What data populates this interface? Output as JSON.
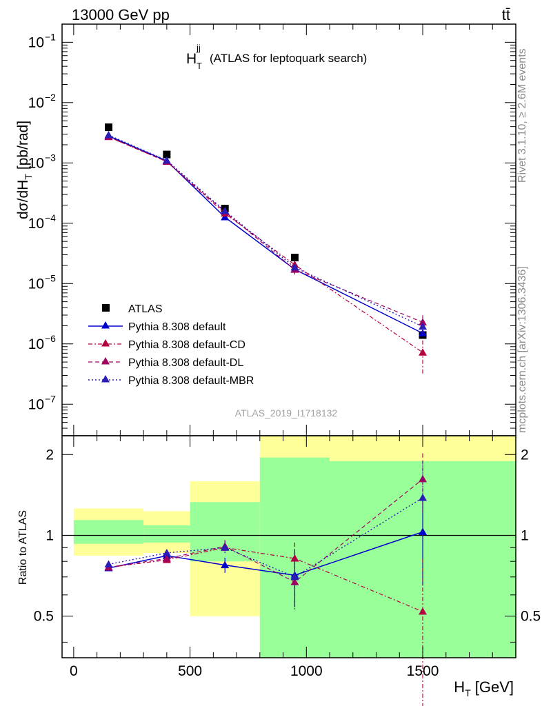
{
  "header": {
    "energy_label": "13000 GeV pp",
    "process_label": "tt̄"
  },
  "side": {
    "rivet_label": "Rivet 3.1.10, ≥ 2.6M events",
    "mcplots_label": "mcplots.cern.ch [arXiv:1306.3436]"
  },
  "chart_data": [
    {
      "type": "scatter",
      "panel": "main",
      "title": "H_T^jj (ATLAS for leptoquark search)",
      "title_main": "H",
      "title_sub": "T",
      "title_sup": "jj",
      "title_rest": "(ATLAS for leptoquark search)",
      "ylabel": "dσ/dH_T [pb/rad]",
      "ylabel_pre": "dσ/dH",
      "ylabel_sub": "T",
      "ylabel_post": "[pb/rad]",
      "yscale": "log",
      "ylim": [
        3e-08,
        0.2
      ],
      "xlim": [
        -50,
        1900
      ],
      "yticks": [
        {
          "exp": -7,
          "base": "10",
          "sup": "−7"
        },
        {
          "exp": -6,
          "base": "10",
          "sup": "−6"
        },
        {
          "exp": -5,
          "base": "10",
          "sup": "−5"
        },
        {
          "exp": -4,
          "base": "10",
          "sup": "−4"
        },
        {
          "exp": -3,
          "base": "10",
          "sup": "−3"
        },
        {
          "exp": -2,
          "base": "10",
          "sup": "−2"
        },
        {
          "exp": -1,
          "base": "10",
          "sup": "−1"
        }
      ],
      "analysis_label": "ATLAS_2019_I1718132",
      "legend_position": "middle-left",
      "data_series": {
        "name": "ATLAS",
        "color": "#000000",
        "x": [
          150,
          400,
          650,
          950,
          1500
        ],
        "y": [
          0.0039,
          0.00138,
          0.000175,
          2.7e-05,
          1.4e-06
        ]
      },
      "mc_series": [
        {
          "name": "Pythia 8.308 default",
          "color": "#0000cc",
          "dash": "",
          "lineW": 1.5,
          "x": [
            150,
            400,
            650,
            950,
            1500
          ],
          "y": [
            0.0028,
            0.00108,
            0.000126,
            1.72e-05,
            1.5e-06
          ],
          "err": [
            0,
            0,
            0,
            0,
            0
          ]
        },
        {
          "name": "Pythia 8.308 default-CD",
          "color": "#b30040",
          "dash": "6,3,2,3",
          "lineW": 1.2,
          "x": [
            150,
            400,
            650,
            950,
            1500
          ],
          "y": [
            0.0027,
            0.00105,
            0.000145,
            2.05e-05,
            7.2e-07
          ],
          "err": [
            0,
            0,
            0,
            3e-06,
            4.2e-07
          ]
        },
        {
          "name": "Pythia 8.308 default-DL",
          "color": "#a0005e",
          "dash": "6,4",
          "lineW": 1.2,
          "x": [
            150,
            400,
            650,
            950,
            1500
          ],
          "y": [
            0.0027,
            0.00105,
            0.000155,
            1.7e-05,
            2.28e-06
          ],
          "err": [
            0,
            0,
            0,
            2.8e-06,
            7e-07
          ]
        },
        {
          "name": "Pythia 8.308 default-MBR",
          "color": "#2a1db5",
          "dash": "2,3",
          "lineW": 1.4,
          "x": [
            150,
            400,
            650,
            950,
            1500
          ],
          "y": [
            0.0029,
            0.0011,
            0.00016,
            1.85e-05,
            1.94e-06
          ],
          "err": [
            0,
            0,
            0,
            2.8e-06,
            6e-07
          ]
        }
      ]
    },
    {
      "type": "scatter",
      "panel": "ratio",
      "ylabel": "Ratio to ATLAS",
      "xlabel": "H_T [GeV]",
      "xlabel_pre": "H",
      "xlabel_sub": "T",
      "xlabel_post": "[GeV]",
      "yscale": "log",
      "ylim": [
        0.35,
        2.35
      ],
      "xlim": [
        -50,
        1900
      ],
      "xticks": [
        0,
        500,
        1000,
        1500
      ],
      "xtick_labels": [
        "0",
        "500",
        "1000",
        "1500"
      ],
      "yticks": [
        0.5,
        1,
        2
      ],
      "ytick_labels": [
        "0.5",
        "1",
        "2"
      ],
      "uncertainty_bands": [
        {
          "x": [
            0,
            300
          ],
          "yellow": [
            0.84,
            1.26
          ],
          "green": [
            0.93,
            1.14
          ]
        },
        {
          "x": [
            300,
            500
          ],
          "yellow": [
            0.86,
            1.23
          ],
          "green": [
            0.94,
            1.09
          ]
        },
        {
          "x": [
            500,
            800
          ],
          "yellow": [
            0.5,
            1.59
          ],
          "green": [
            0.8,
            1.33
          ]
        },
        {
          "x": [
            800,
            1100
          ],
          "yellow": [
            0.35,
            2.35
          ],
          "green": [
            0.35,
            1.95
          ]
        },
        {
          "x": [
            1100,
            1900
          ],
          "yellow": [
            0.35,
            2.35
          ],
          "green": [
            0.35,
            1.89
          ]
        }
      ],
      "mc_series": [
        {
          "name": "Pythia 8.308 default",
          "color": "#0000cc",
          "dash": "",
          "lineW": 1.5,
          "x": [
            150,
            400,
            650,
            950,
            1500
          ],
          "y": [
            0.755,
            0.84,
            0.775,
            0.71,
            1.03
          ],
          "err": [
            0.015,
            0.025,
            0.05,
            0.17,
            0.38
          ]
        },
        {
          "name": "Pythia 8.308 default-CD",
          "color": "#b30040",
          "dash": "6,3,2,3",
          "lineW": 1.2,
          "x": [
            150,
            400,
            650,
            950,
            1500
          ],
          "y": [
            0.76,
            0.81,
            0.9,
            0.82,
            0.52
          ],
          "err": [
            0.012,
            0.02,
            0.04,
            0.12,
            0.3
          ]
        },
        {
          "name": "Pythia 8.308 default-DL",
          "color": "#a0005e",
          "dash": "6,4",
          "lineW": 1.2,
          "x": [
            150,
            400,
            650,
            950,
            1500
          ],
          "y": [
            0.76,
            0.82,
            0.91,
            0.67,
            1.62
          ],
          "err": [
            0.012,
            0.02,
            0.05,
            0.14,
            0.4
          ]
        },
        {
          "name": "Pythia 8.308 default-MBR",
          "color": "#2a1db5",
          "dash": "2,3",
          "lineW": 1.4,
          "x": [
            150,
            400,
            650,
            950,
            1500
          ],
          "y": [
            0.78,
            0.86,
            0.9,
            0.7,
            1.38
          ],
          "err": [
            0.012,
            0.02,
            0.05,
            0.16,
            0.5
          ]
        }
      ]
    }
  ]
}
